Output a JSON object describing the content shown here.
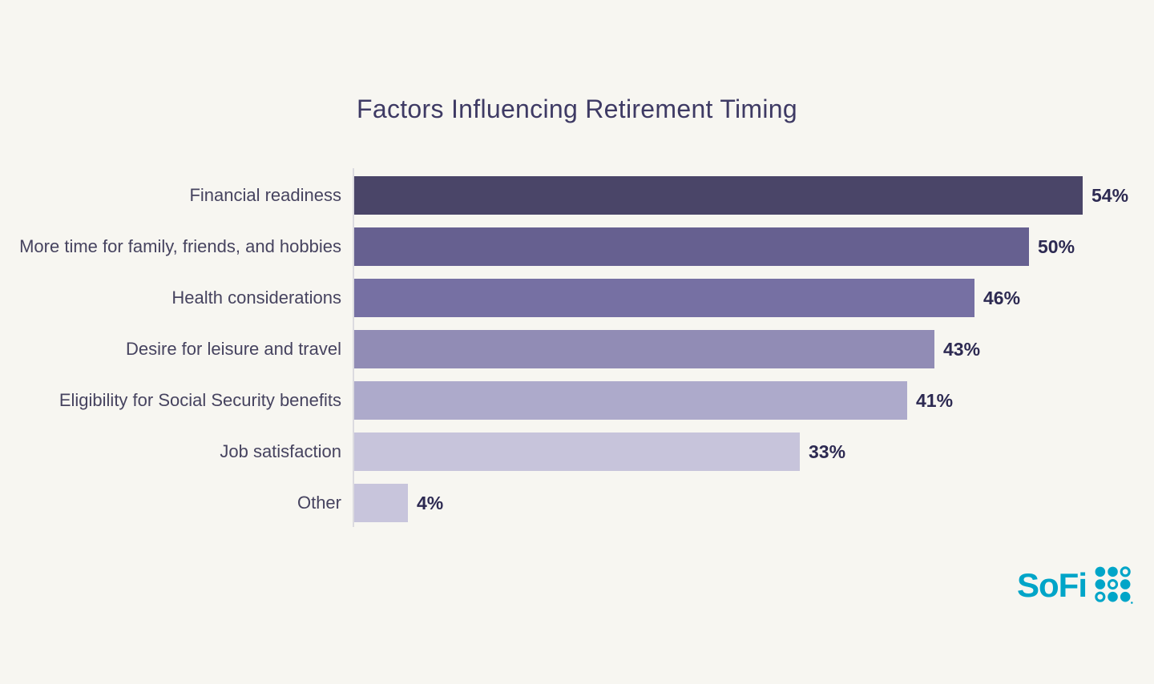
{
  "chart_data": {
    "type": "bar",
    "orientation": "horizontal",
    "title": "Factors Influencing Retirement Timing",
    "categories": [
      "Financial readiness",
      "More time for family, friends, and hobbies",
      "Health considerations",
      "Desire for leisure and travel",
      "Eligibility for Social Security benefits",
      "Job satisfaction",
      "Other"
    ],
    "values": [
      54,
      50,
      46,
      43,
      41,
      33,
      4
    ],
    "value_labels": [
      "54%",
      "50%",
      "46%",
      "43%",
      "41%",
      "33%",
      "4%"
    ],
    "bar_colors": [
      "#4a4568",
      "#666090",
      "#7670a3",
      "#918cb5",
      "#adaacb",
      "#c7c4db",
      "#c8c5dc"
    ],
    "xlabel": "",
    "ylabel": "",
    "xlim": [
      0,
      57
    ],
    "grid": false,
    "legend": false,
    "value_label_position": "outside-end"
  },
  "branding": {
    "logo_text": "SoFi",
    "logo_icon": "sofi-dot-grid-icon"
  },
  "colors": {
    "background": "#f7f6f1",
    "title-text": "#3e3a64",
    "category-text": "#46435f",
    "value-text": "#2d2a52",
    "axis-line": "#dcdbe0",
    "logo-color": "#00a5c8"
  }
}
